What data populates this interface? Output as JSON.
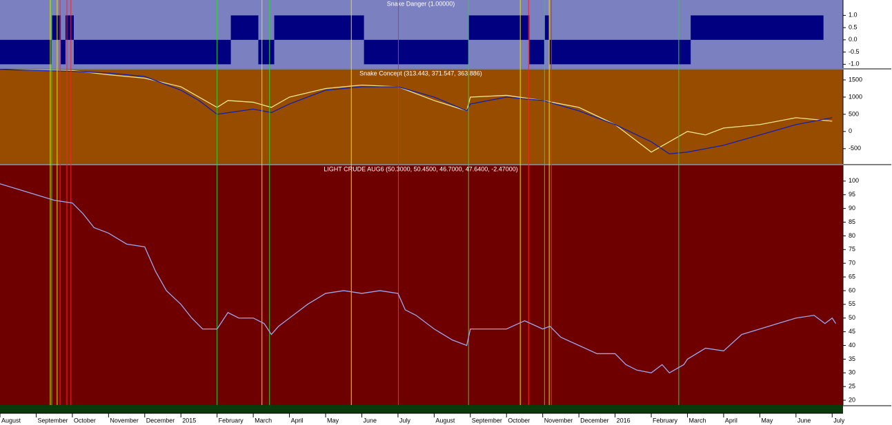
{
  "chart_data": [
    {
      "type": "step",
      "title": "Snake Danger (1.00000)",
      "ylim": [
        -1.16,
        1.63
      ],
      "yticks": [
        {
          "value": 1,
          "label": "1.0"
        },
        0.5,
        {
          "value": 0,
          "label": "0.0"
        },
        -0.5,
        {
          "value": -1,
          "label": "-1.0"
        }
      ],
      "background": "#7b80c0",
      "xlim": [
        0,
        23.3
      ],
      "series": [
        {
          "color": "#000080",
          "x": [
            0,
            1.43,
            1.68,
            1.81,
            2.04,
            6.38,
            7.14,
            7.58,
            10.06,
            12.95,
            14.63,
            15.05,
            15.18,
            19.09,
            22.76
          ],
          "values": [
            -1,
            1,
            -1,
            1,
            -1,
            1,
            -1,
            1,
            -1,
            1,
            -1,
            1,
            -1,
            1,
            0
          ]
        }
      ]
    },
    {
      "type": "line",
      "title": "Snake Concept (313.443, 371.547, 363.886)",
      "ylim": [
        -944,
        1800
      ],
      "yticks": [
        1500,
        1000,
        500,
        0,
        -500
      ],
      "background": "#984c00",
      "xlim": [
        0,
        23.3
      ],
      "series": [
        {
          "color": "#f0e890",
          "x": [
            0,
            2,
            3,
            4,
            5,
            6,
            6.3,
            7,
            7.5,
            8,
            9,
            10,
            11,
            12,
            12.9,
            13,
            14,
            15,
            16,
            17,
            17.5,
            18,
            18.5,
            19,
            19.5,
            20,
            21,
            22,
            23
          ],
          "values": [
            1800,
            1770,
            1650,
            1550,
            1300,
            700,
            900,
            850,
            700,
            1000,
            1250,
            1350,
            1300,
            900,
            600,
            1000,
            1050,
            900,
            700,
            200,
            -200,
            -600,
            -300,
            0,
            -100,
            100,
            200,
            400,
            300
          ]
        },
        {
          "color": "#1020b0",
          "x": [
            0,
            2,
            3,
            4,
            5,
            5.5,
            6,
            7,
            7.5,
            8,
            9,
            10,
            11,
            12,
            12.9,
            13,
            14,
            15,
            16,
            17,
            18,
            18.5,
            19,
            20,
            21,
            22,
            23
          ],
          "values": [
            1800,
            1750,
            1700,
            1600,
            1200,
            900,
            500,
            650,
            550,
            800,
            1200,
            1300,
            1300,
            1000,
            600,
            800,
            1000,
            900,
            600,
            200,
            -300,
            -650,
            -600,
            -400,
            -100,
            200,
            400
          ]
        }
      ]
    },
    {
      "type": "line",
      "title": "LIGHT CRUDE AUG6 (50.3000, 50.4500, 46.7000, 47.6400, -2.47000)",
      "ylim": [
        18.25,
        105.75
      ],
      "yticks": [
        100,
        95,
        90,
        85,
        80,
        75,
        70,
        65,
        60,
        55,
        50,
        45,
        40,
        35,
        30,
        25,
        20
      ],
      "background": "#6e0000",
      "xlim": [
        0,
        23.3
      ],
      "xticks": [
        {
          "value": 0,
          "label": "August"
        },
        {
          "value": 1,
          "label": "September"
        },
        {
          "value": 2,
          "label": "October"
        },
        {
          "value": 3,
          "label": "November"
        },
        {
          "value": 4,
          "label": "December"
        },
        {
          "value": 5,
          "label": "2015"
        },
        {
          "value": 6,
          "label": "February"
        },
        {
          "value": 7,
          "label": "March"
        },
        {
          "value": 8,
          "label": "April"
        },
        {
          "value": 9,
          "label": "May"
        },
        {
          "value": 10,
          "label": "June"
        },
        {
          "value": 11,
          "label": "July"
        },
        {
          "value": 12,
          "label": "August"
        },
        {
          "value": 13,
          "label": "September"
        },
        {
          "value": 14,
          "label": "October"
        },
        {
          "value": 15,
          "label": "November"
        },
        {
          "value": 16,
          "label": "December"
        },
        {
          "value": 17,
          "label": "2016"
        },
        {
          "value": 18,
          "label": "February"
        },
        {
          "value": 19,
          "label": "March"
        },
        {
          "value": 20,
          "label": "April"
        },
        {
          "value": 21,
          "label": "May"
        },
        {
          "value": 22,
          "label": "June"
        },
        {
          "value": 23,
          "label": "July"
        }
      ],
      "series": [
        {
          "color": "#9aa8f0",
          "x": [
            0,
            0.5,
            1,
            1.5,
            2,
            2.3,
            2.6,
            3,
            3.5,
            4,
            4.3,
            4.6,
            5,
            5.3,
            5.6,
            6,
            6.3,
            6.6,
            7,
            7.3,
            7.5,
            7.7,
            8,
            8.5,
            9,
            9.5,
            10,
            10.5,
            11,
            11.2,
            11.5,
            12,
            12.5,
            12.9,
            13,
            13.5,
            14,
            14.5,
            15,
            15.2,
            15.5,
            16,
            16.5,
            17,
            17.3,
            17.6,
            18,
            18.3,
            18.5,
            18.9,
            19,
            19.5,
            20,
            20.5,
            21,
            21.5,
            22,
            22.5,
            22.8,
            23,
            23.1
          ],
          "values": [
            99,
            97,
            95,
            93,
            92,
            88,
            83,
            81,
            77,
            76,
            67,
            60,
            55,
            50,
            46,
            46,
            52,
            50,
            50,
            48,
            44,
            47,
            50,
            55,
            59,
            60,
            59,
            60,
            59,
            53,
            51,
            46,
            42,
            40,
            46,
            46,
            46,
            49,
            46,
            47,
            43,
            40,
            37,
            37,
            33,
            31,
            30,
            33,
            30,
            33,
            35,
            39,
            38,
            44,
            46,
            48,
            50,
            51,
            48,
            50,
            48
          ]
        }
      ],
      "vlines": [
        {
          "color": "#30d030",
          "x": [
            1.43,
            6.0,
            7.45,
            12.95,
            15.05,
            18.76
          ]
        },
        {
          "color": "#e8e000",
          "x": [
            1.39,
            1.58,
            7.24,
            9.71,
            14.38,
            15.18
          ]
        },
        {
          "color": "#ff2020",
          "x": [
            1.66,
            1.85,
            1.96,
            11.01,
            14.61,
            15.24
          ]
        }
      ]
    }
  ]
}
